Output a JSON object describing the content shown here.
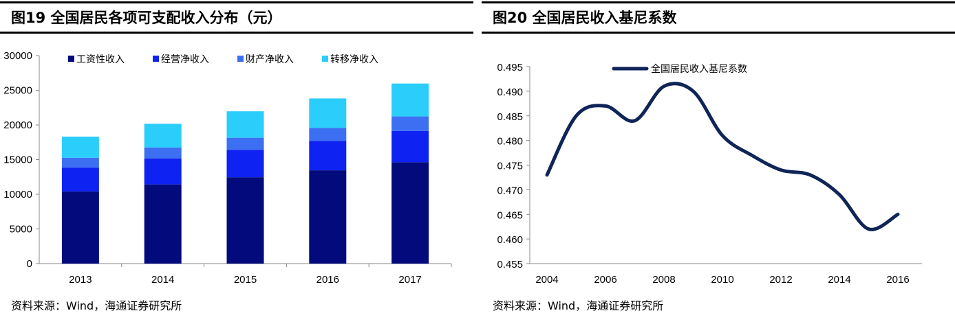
{
  "chart_data": [
    {
      "type": "bar",
      "stacked": true,
      "title": "图19 全国居民各项可支配收入分布（元）",
      "categories": [
        "2013",
        "2014",
        "2015",
        "2016",
        "2017"
      ],
      "series": [
        {
          "name": "工资性收入",
          "color": "#020A7C",
          "values": [
            10411,
            11421,
            12459,
            13455,
            14620
          ]
        },
        {
          "name": "经营净收入",
          "color": "#0E22F2",
          "values": [
            3435,
            3732,
            3956,
            4218,
            4502
          ]
        },
        {
          "name": "财产净收入",
          "color": "#3D6FF2",
          "values": [
            1423,
            1588,
            1740,
            1889,
            2107
          ]
        },
        {
          "name": "转移净收入",
          "color": "#2BCDFB",
          "values": [
            3042,
            3427,
            3812,
            4259,
            4744
          ]
        }
      ],
      "ylim": [
        0,
        30000
      ],
      "yticks": [
        "0",
        "5000",
        "10000",
        "15000",
        "20000",
        "25000",
        "30000"
      ],
      "legend": "top",
      "source": "资料来源：Wind，海通证券研究所"
    },
    {
      "type": "line",
      "title": "图20 全国居民收入基尼系数",
      "x": [
        2004,
        2005,
        2006,
        2007,
        2008,
        2009,
        2010,
        2011,
        2012,
        2013,
        2014,
        2015,
        2016
      ],
      "series": [
        {
          "name": "全国居民收入基尼系数",
          "color": "#0F2557",
          "values": [
            0.473,
            0.485,
            0.487,
            0.484,
            0.491,
            0.49,
            0.481,
            0.477,
            0.474,
            0.473,
            0.469,
            0.462,
            0.465
          ]
        }
      ],
      "ylim": [
        0.455,
        0.495
      ],
      "yticks": [
        "0.455",
        "0.460",
        "0.465",
        "0.470",
        "0.475",
        "0.480",
        "0.485",
        "0.490",
        "0.495"
      ],
      "xticks": [
        "2004",
        "2006",
        "2008",
        "2010",
        "2012",
        "2014",
        "2016"
      ],
      "legend": "top",
      "source": "资料来源：Wind，海通证券研究所"
    }
  ]
}
